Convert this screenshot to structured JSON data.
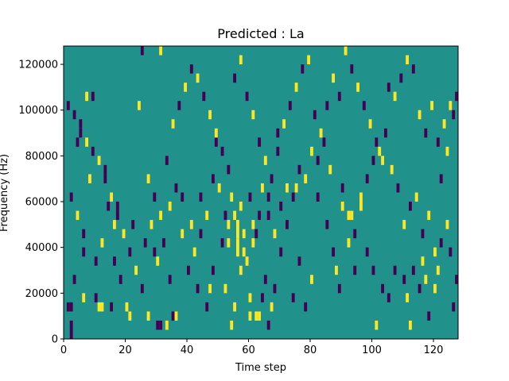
{
  "chart_data": {
    "type": "heatmap",
    "title": "Predicted : La",
    "xlabel": "Time step",
    "ylabel": "Frequency (Hz)",
    "xlim": [
      0,
      128
    ],
    "ylim": [
      0,
      128000
    ],
    "xticks": [
      0,
      20,
      40,
      60,
      80,
      100,
      120
    ],
    "yticks": [
      0,
      20000,
      40000,
      60000,
      80000,
      100000,
      120000
    ],
    "colormap": "viridis",
    "colors": {
      "background": "#21918c",
      "low": "#440154",
      "high": "#fde725"
    },
    "grid": false,
    "legend": "none",
    "background_value": 0,
    "cells": [
      [
        1,
        12000,
        16000,
        -1
      ],
      [
        2,
        12000,
        16000,
        -1
      ],
      [
        2,
        4000,
        8000,
        -1
      ],
      [
        2,
        0,
        4000,
        -1
      ],
      [
        3,
        24000,
        28000,
        -1
      ],
      [
        4,
        84000,
        88000,
        -1
      ],
      [
        5,
        88000,
        92000,
        -1
      ],
      [
        6,
        16000,
        20000,
        1
      ],
      [
        6,
        36000,
        40000,
        -1
      ],
      [
        7,
        104000,
        108000,
        1
      ],
      [
        9,
        104000,
        108000,
        -1
      ],
      [
        10,
        16000,
        20000,
        -1
      ],
      [
        11,
        12000,
        16000,
        1
      ],
      [
        12,
        12000,
        16000,
        1
      ],
      [
        13,
        72000,
        76000,
        -1
      ],
      [
        15,
        12000,
        16000,
        -1
      ],
      [
        16,
        32000,
        36000,
        -1
      ],
      [
        17,
        56000,
        60000,
        -1
      ],
      [
        20,
        12000,
        16000,
        1
      ],
      [
        21,
        8000,
        12000,
        1
      ],
      [
        22,
        48000,
        52000,
        -1
      ],
      [
        24,
        100000,
        104000,
        1
      ],
      [
        25,
        124000,
        128000,
        -1
      ],
      [
        27,
        8000,
        12000,
        1
      ],
      [
        29,
        36000,
        40000,
        -1
      ],
      [
        30,
        4000,
        8000,
        -1
      ],
      [
        31,
        4000,
        8000,
        -1
      ],
      [
        31,
        124000,
        128000,
        1
      ],
      [
        33,
        4000,
        8000,
        1
      ],
      [
        34,
        24000,
        28000,
        -1
      ],
      [
        35,
        8000,
        12000,
        -1
      ],
      [
        36,
        8000,
        12000,
        1
      ],
      [
        38,
        60000,
        64000,
        -1
      ],
      [
        41,
        48000,
        52000,
        1
      ],
      [
        43,
        20000,
        24000,
        -1
      ],
      [
        44,
        44000,
        48000,
        -1
      ],
      [
        46,
        12000,
        16000,
        -1
      ],
      [
        47,
        20000,
        24000,
        1
      ],
      [
        48,
        28000,
        32000,
        -1
      ],
      [
        49,
        84000,
        88000,
        -1
      ],
      [
        50,
        64000,
        68000,
        1
      ],
      [
        51,
        40000,
        44000,
        -1
      ],
      [
        52,
        20000,
        24000,
        1
      ],
      [
        53,
        40000,
        44000,
        1
      ],
      [
        54,
        4000,
        8000,
        1
      ],
      [
        55,
        12000,
        16000,
        1
      ],
      [
        56,
        36000,
        44000,
        1
      ],
      [
        57,
        28000,
        32000,
        1
      ],
      [
        58,
        36000,
        40000,
        1
      ],
      [
        59,
        32000,
        36000,
        1
      ],
      [
        60,
        16000,
        20000,
        1
      ],
      [
        60,
        8000,
        12000,
        1
      ],
      [
        61,
        40000,
        44000,
        1
      ],
      [
        62,
        8000,
        12000,
        1
      ],
      [
        63,
        8000,
        12000,
        1
      ],
      [
        64,
        16000,
        20000,
        -1
      ],
      [
        65,
        24000,
        28000,
        -1
      ],
      [
        66,
        4000,
        8000,
        -1
      ],
      [
        66,
        60000,
        64000,
        -1
      ],
      [
        67,
        12000,
        16000,
        1
      ],
      [
        68,
        20000,
        24000,
        -1
      ],
      [
        69,
        88000,
        92000,
        -1
      ],
      [
        70,
        36000,
        40000,
        -1
      ],
      [
        72,
        48000,
        52000,
        -1
      ],
      [
        74,
        16000,
        20000,
        -1
      ],
      [
        75,
        64000,
        68000,
        1
      ],
      [
        76,
        32000,
        36000,
        -1
      ],
      [
        78,
        12000,
        16000,
        -1
      ],
      [
        80,
        24000,
        28000,
        1
      ],
      [
        82,
        60000,
        64000,
        -1
      ],
      [
        85,
        48000,
        52000,
        -1
      ],
      [
        87,
        36000,
        40000,
        -1
      ],
      [
        88,
        28000,
        32000,
        1
      ],
      [
        89,
        20000,
        24000,
        -1
      ],
      [
        90,
        64000,
        68000,
        -1
      ],
      [
        92,
        40000,
        44000,
        1
      ],
      [
        93,
        52000,
        56000,
        1
      ],
      [
        94,
        28000,
        32000,
        -1
      ],
      [
        96,
        56000,
        60000,
        1
      ],
      [
        98,
        36000,
        40000,
        -1
      ],
      [
        100,
        28000,
        32000,
        -1
      ],
      [
        101,
        4000,
        8000,
        1
      ],
      [
        103,
        20000,
        24000,
        -1
      ],
      [
        105,
        16000,
        20000,
        -1
      ],
      [
        107,
        28000,
        32000,
        -1
      ],
      [
        110,
        24000,
        28000,
        -1
      ],
      [
        111,
        16000,
        20000,
        1
      ],
      [
        112,
        4000,
        8000,
        1
      ],
      [
        113,
        28000,
        32000,
        -1
      ],
      [
        115,
        20000,
        24000,
        -1
      ],
      [
        116,
        32000,
        36000,
        1
      ],
      [
        117,
        24000,
        28000,
        1
      ],
      [
        118,
        8000,
        12000,
        -1
      ],
      [
        120,
        20000,
        24000,
        1
      ],
      [
        121,
        28000,
        32000,
        1
      ],
      [
        122,
        40000,
        44000,
        -1
      ],
      [
        124,
        48000,
        52000,
        1
      ],
      [
        125,
        36000,
        40000,
        -1
      ],
      [
        126,
        12000,
        16000,
        -1
      ],
      [
        127,
        24000,
        28000,
        -1
      ],
      [
        52,
        52000,
        56000,
        -1
      ],
      [
        53,
        48000,
        52000,
        1
      ],
      [
        54,
        60000,
        64000,
        1
      ],
      [
        55,
        52000,
        56000,
        1
      ],
      [
        56,
        44000,
        52000,
        1
      ],
      [
        57,
        56000,
        60000,
        1
      ],
      [
        58,
        44000,
        48000,
        1
      ],
      [
        60,
        60000,
        64000,
        -1
      ],
      [
        61,
        48000,
        52000,
        1
      ],
      [
        62,
        44000,
        48000,
        -1
      ],
      [
        63,
        52000,
        56000,
        -1
      ],
      [
        64,
        64000,
        68000,
        1
      ],
      [
        66,
        52000,
        56000,
        -1
      ],
      [
        68,
        44000,
        48000,
        1
      ],
      [
        70,
        56000,
        60000,
        -1
      ],
      [
        72,
        64000,
        68000,
        1
      ],
      [
        74,
        60000,
        64000,
        -1
      ],
      [
        76,
        72000,
        76000,
        -1
      ],
      [
        78,
        68000,
        72000,
        1
      ],
      [
        80,
        80000,
        84000,
        1
      ],
      [
        82,
        76000,
        80000,
        -1
      ],
      [
        84,
        84000,
        88000,
        -1
      ],
      [
        86,
        72000,
        76000,
        1
      ],
      [
        90,
        56000,
        60000,
        1
      ],
      [
        92,
        52000,
        56000,
        1
      ],
      [
        94,
        44000,
        48000,
        -1
      ],
      [
        96,
        60000,
        64000,
        1
      ],
      [
        98,
        68000,
        72000,
        -1
      ],
      [
        100,
        76000,
        80000,
        -1
      ],
      [
        102,
        80000,
        84000,
        1
      ],
      [
        104,
        88000,
        92000,
        -1
      ],
      [
        106,
        72000,
        76000,
        1
      ],
      [
        108,
        64000,
        68000,
        -1
      ],
      [
        110,
        48000,
        52000,
        1
      ],
      [
        112,
        56000,
        60000,
        -1
      ],
      [
        114,
        60000,
        64000,
        1
      ],
      [
        116,
        44000,
        48000,
        -1
      ],
      [
        118,
        52000,
        56000,
        1
      ],
      [
        120,
        36000,
        40000,
        1
      ],
      [
        122,
        68000,
        72000,
        -1
      ],
      [
        124,
        80000,
        84000,
        1
      ],
      [
        126,
        96000,
        100000,
        -1
      ],
      [
        127,
        104000,
        108000,
        -1
      ],
      [
        125,
        100000,
        104000,
        1
      ],
      [
        1,
        100000,
        104000,
        -1
      ],
      [
        3,
        96000,
        100000,
        -1
      ],
      [
        5,
        92000,
        96000,
        -1
      ],
      [
        7,
        84000,
        88000,
        1
      ],
      [
        9,
        80000,
        84000,
        -1
      ],
      [
        11,
        76000,
        80000,
        1
      ],
      [
        13,
        68000,
        72000,
        -1
      ],
      [
        15,
        60000,
        64000,
        1
      ],
      [
        17,
        52000,
        56000,
        -1
      ],
      [
        19,
        44000,
        48000,
        1
      ],
      [
        21,
        36000,
        40000,
        -1
      ],
      [
        23,
        28000,
        32000,
        1
      ],
      [
        25,
        20000,
        24000,
        -1
      ],
      [
        27,
        68000,
        72000,
        1
      ],
      [
        29,
        60000,
        64000,
        -1
      ],
      [
        31,
        52000,
        56000,
        1
      ],
      [
        33,
        76000,
        80000,
        -1
      ],
      [
        35,
        92000,
        96000,
        1
      ],
      [
        37,
        100000,
        104000,
        -1
      ],
      [
        39,
        108000,
        112000,
        1
      ],
      [
        41,
        116000,
        120000,
        -1
      ],
      [
        43,
        112000,
        116000,
        1
      ],
      [
        45,
        104000,
        108000,
        -1
      ],
      [
        47,
        96000,
        100000,
        1
      ],
      [
        49,
        88000,
        92000,
        1
      ],
      [
        51,
        80000,
        84000,
        -1
      ],
      [
        53,
        72000,
        76000,
        -1
      ],
      [
        55,
        112000,
        116000,
        -1
      ],
      [
        57,
        120000,
        124000,
        1
      ],
      [
        59,
        104000,
        108000,
        -1
      ],
      [
        61,
        96000,
        100000,
        1
      ],
      [
        63,
        84000,
        88000,
        -1
      ],
      [
        65,
        76000,
        80000,
        1
      ],
      [
        67,
        68000,
        72000,
        -1
      ],
      [
        69,
        80000,
        84000,
        -1
      ],
      [
        71,
        92000,
        96000,
        1
      ],
      [
        73,
        100000,
        104000,
        -1
      ],
      [
        75,
        108000,
        112000,
        1
      ],
      [
        77,
        116000,
        120000,
        -1
      ],
      [
        79,
        120000,
        124000,
        1
      ],
      [
        81,
        96000,
        100000,
        -1
      ],
      [
        83,
        88000,
        92000,
        1
      ],
      [
        85,
        100000,
        104000,
        -1
      ],
      [
        87,
        112000,
        116000,
        1
      ],
      [
        89,
        104000,
        108000,
        -1
      ],
      [
        91,
        124000,
        128000,
        1
      ],
      [
        93,
        116000,
        120000,
        -1
      ],
      [
        95,
        108000,
        112000,
        1
      ],
      [
        97,
        100000,
        104000,
        -1
      ],
      [
        99,
        92000,
        96000,
        1
      ],
      [
        101,
        84000,
        88000,
        -1
      ],
      [
        103,
        76000,
        80000,
        1
      ],
      [
        105,
        108000,
        112000,
        -1
      ],
      [
        107,
        104000,
        108000,
        1
      ],
      [
        109,
        112000,
        116000,
        -1
      ],
      [
        111,
        120000,
        124000,
        1
      ],
      [
        113,
        116000,
        120000,
        -1
      ],
      [
        115,
        96000,
        100000,
        1
      ],
      [
        117,
        88000,
        92000,
        -1
      ],
      [
        119,
        100000,
        104000,
        1
      ],
      [
        121,
        84000,
        88000,
        -1
      ],
      [
        123,
        92000,
        96000,
        1
      ],
      [
        2,
        60000,
        64000,
        -1
      ],
      [
        4,
        52000,
        56000,
        1
      ],
      [
        6,
        44000,
        48000,
        -1
      ],
      [
        8,
        68000,
        72000,
        1
      ],
      [
        10,
        32000,
        36000,
        -1
      ],
      [
        12,
        40000,
        44000,
        1
      ],
      [
        14,
        56000,
        60000,
        -1
      ],
      [
        16,
        48000,
        52000,
        1
      ],
      [
        18,
        24000,
        28000,
        -1
      ],
      [
        26,
        40000,
        44000,
        -1
      ],
      [
        28,
        48000,
        52000,
        1
      ],
      [
        30,
        32000,
        36000,
        1
      ],
      [
        32,
        40000,
        44000,
        -1
      ],
      [
        34,
        56000,
        60000,
        1
      ],
      [
        36,
        64000,
        68000,
        -1
      ],
      [
        38,
        44000,
        48000,
        1
      ],
      [
        40,
        28000,
        32000,
        -1
      ],
      [
        42,
        36000,
        40000,
        1
      ],
      [
        44,
        60000,
        64000,
        -1
      ],
      [
        46,
        52000,
        56000,
        1
      ],
      [
        48,
        68000,
        72000,
        -1
      ]
    ]
  }
}
